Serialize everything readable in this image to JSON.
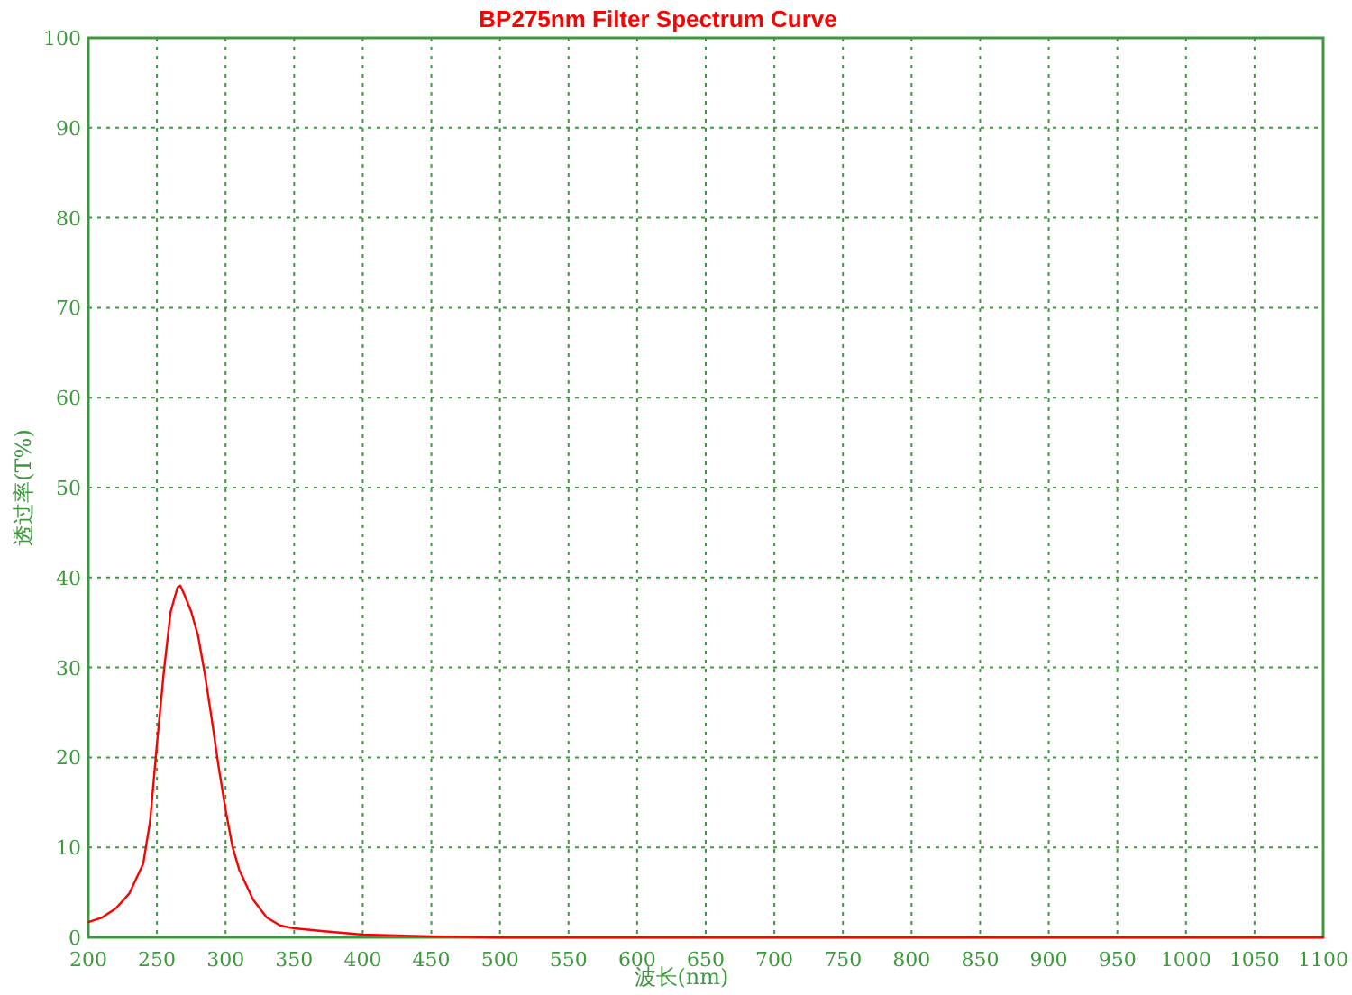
{
  "chart_data": {
    "type": "line",
    "title": "BP275nm Filter Spectrum Curve",
    "xlabel": "波长(nm)",
    "ylabel": "透过率(T%)",
    "x": [
      200,
      210,
      220,
      230,
      240,
      245,
      250,
      255,
      260,
      265,
      267,
      270,
      275,
      280,
      285,
      290,
      295,
      300,
      305,
      310,
      320,
      330,
      340,
      350,
      370,
      400,
      450,
      500,
      600,
      700,
      800,
      900,
      1000,
      1100
    ],
    "series": [
      {
        "color": "#ff0000",
        "values": [
          1.7,
          2.2,
          3.2,
          4.9,
          8.2,
          12.9,
          21.5,
          29.5,
          36.2,
          38.9,
          39.1,
          38.1,
          36.2,
          33.5,
          29.2,
          24.2,
          18.9,
          14.2,
          10.1,
          7.5,
          4.2,
          2.2,
          1.3,
          1.0,
          0.7,
          0.3,
          0.1,
          0,
          0,
          0,
          0,
          0,
          0,
          0
        ]
      }
    ],
    "xlim": [
      200,
      1100
    ],
    "ylim": [
      0,
      100
    ],
    "xticks": [
      200,
      250,
      300,
      350,
      400,
      450,
      500,
      550,
      600,
      650,
      700,
      750,
      800,
      850,
      900,
      950,
      1000,
      1050,
      1100
    ],
    "yticks": [
      0,
      10,
      20,
      30,
      40,
      50,
      60,
      70,
      80,
      90,
      100
    ],
    "grid": true,
    "marker": "none",
    "line_style": "solid"
  }
}
